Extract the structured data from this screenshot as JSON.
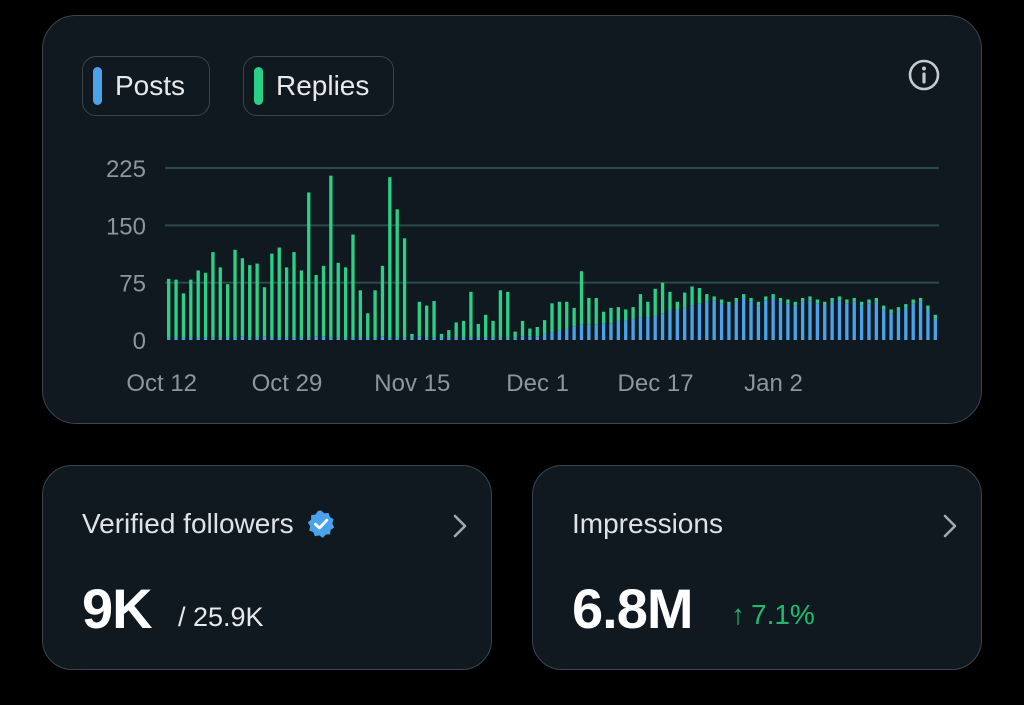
{
  "legend": {
    "posts_label": "Posts",
    "replies_label": "Replies"
  },
  "colors": {
    "posts": "#4aa3ea",
    "replies": "#2bd087",
    "grid": "#2b4a48",
    "axis_text": "#8b969e",
    "positive": "#19bf6e"
  },
  "chart_data": {
    "type": "bar",
    "stacked": true,
    "yticks": [
      0,
      75,
      150,
      225
    ],
    "ylim": [
      0,
      225
    ],
    "xtick_labels": [
      "Oct 12",
      "Oct 29",
      "Nov 15",
      "Dec 1",
      "Dec 17",
      "Jan 2"
    ],
    "xtick_index": [
      0,
      17,
      34,
      51,
      67,
      83
    ],
    "series": [
      {
        "name": "Posts",
        "values": [
          3,
          3,
          3,
          3,
          3,
          3,
          3,
          3,
          3,
          3,
          5,
          3,
          3,
          5,
          3,
          3,
          3,
          3,
          3,
          3,
          5,
          5,
          3,
          3,
          3,
          3,
          3,
          3,
          3,
          5,
          3,
          3,
          3,
          3,
          5,
          3,
          3,
          3,
          3,
          3,
          3,
          3,
          3,
          3,
          3,
          3,
          3,
          3,
          5,
          5,
          5,
          8,
          10,
          12,
          15,
          18,
          20,
          20,
          20,
          22,
          22,
          25,
          25,
          28,
          30,
          30,
          32,
          35,
          38,
          40,
          42,
          45,
          48,
          50,
          52,
          48,
          45,
          50,
          55,
          50,
          45,
          52,
          55,
          50,
          48,
          45,
          50,
          52,
          48,
          45,
          50,
          52,
          48,
          50,
          45,
          48,
          50,
          40,
          35,
          38,
          42,
          48,
          50,
          40,
          28
        ]
      },
      {
        "name": "Replies",
        "values": [
          77,
          76,
          58,
          76,
          88,
          85,
          112,
          92,
          70,
          115,
          102,
          95,
          97,
          64,
          110,
          118,
          92,
          112,
          88,
          190,
          80,
          92,
          212,
          98,
          92,
          135,
          62,
          32,
          62,
          92,
          210,
          168,
          130,
          5,
          45,
          42,
          48,
          5,
          10,
          20,
          22,
          60,
          18,
          30,
          22,
          62,
          60,
          8,
          20,
          10,
          12,
          18,
          38,
          38,
          35,
          24,
          70,
          35,
          35,
          15,
          20,
          18,
          15,
          15,
          30,
          20,
          35,
          40,
          25,
          10,
          20,
          25,
          20,
          10,
          5,
          5,
          5,
          5,
          5,
          5,
          5,
          5,
          5,
          5,
          5,
          5,
          5,
          5,
          5,
          5,
          5,
          5,
          5,
          5,
          5,
          5,
          5,
          5,
          5,
          5,
          5,
          5,
          5,
          5,
          5
        ]
      }
    ]
  },
  "followers": {
    "title": "Verified followers",
    "value": "9K",
    "total": "/ 25.9K"
  },
  "impressions": {
    "title": "Impressions",
    "value": "6.8M",
    "delta_arrow": "↑",
    "delta": "7.1%"
  },
  "icons": {
    "info": "info-icon",
    "verified": "verified-badge-icon",
    "chevron": "chevron-right-icon"
  }
}
